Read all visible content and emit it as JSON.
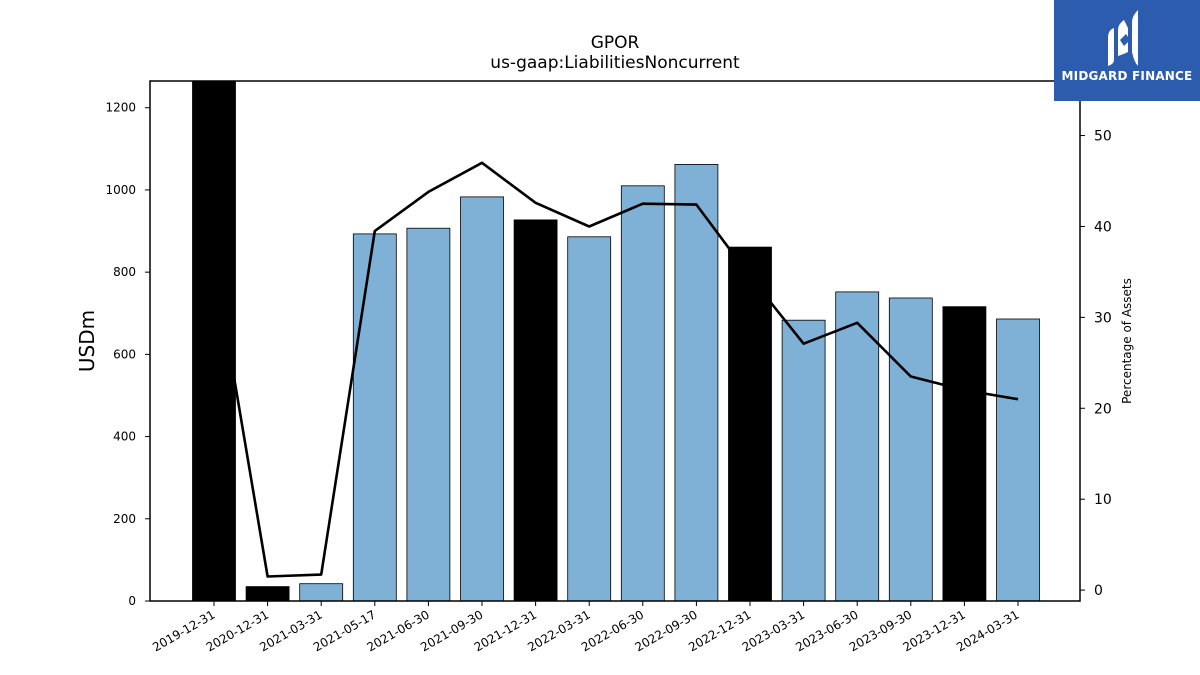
{
  "chart_data": {
    "type": "bar",
    "title": "GPOR",
    "subtitle": "us-gaap:LiabilitiesNoncurrent",
    "ylabel": "USDm",
    "y2label": "Percentage of Assets",
    "ylim": [
      0,
      1265
    ],
    "y2lim": [
      -1.2,
      56
    ],
    "yticks": [
      0,
      200,
      400,
      600,
      800,
      1000,
      1200
    ],
    "y2ticks": [
      0,
      10,
      20,
      30,
      40,
      50
    ],
    "categories": [
      "2019-12-31",
      "2020-12-31",
      "2021-03-31",
      "2021-05-17",
      "2021-06-30",
      "2021-09-30",
      "2021-12-31",
      "2022-03-31",
      "2022-06-30",
      "2022-09-30",
      "2022-12-31",
      "2023-03-31",
      "2023-06-30",
      "2023-09-30",
      "2023-12-31",
      "2024-03-31"
    ],
    "series": [
      {
        "type": "bar",
        "values": [
          1265,
          35,
          42,
          893,
          907,
          983,
          927,
          886,
          1010,
          1062,
          861,
          683,
          752,
          737,
          716,
          686
        ],
        "colors": [
          "#000000",
          "#000000",
          "#7fb0d5",
          "#7fb0d5",
          "#7fb0d5",
          "#7fb0d5",
          "#000000",
          "#7fb0d5",
          "#7fb0d5",
          "#7fb0d5",
          "#000000",
          "#7fb0d5",
          "#7fb0d5",
          "#7fb0d5",
          "#000000",
          "#7fb0d5"
        ]
      },
      {
        "type": "line",
        "axis": "right",
        "color": "#000000",
        "values": [
          36.5,
          1.5,
          1.7,
          39.5,
          43.8,
          47.0,
          42.6,
          40.0,
          42.5,
          42.4,
          34.5,
          27.1,
          29.4,
          23.5,
          22.0,
          21.0
        ]
      }
    ]
  },
  "logo": {
    "text": "MIDGARD FINANCE",
    "color": "#2b5cad"
  }
}
